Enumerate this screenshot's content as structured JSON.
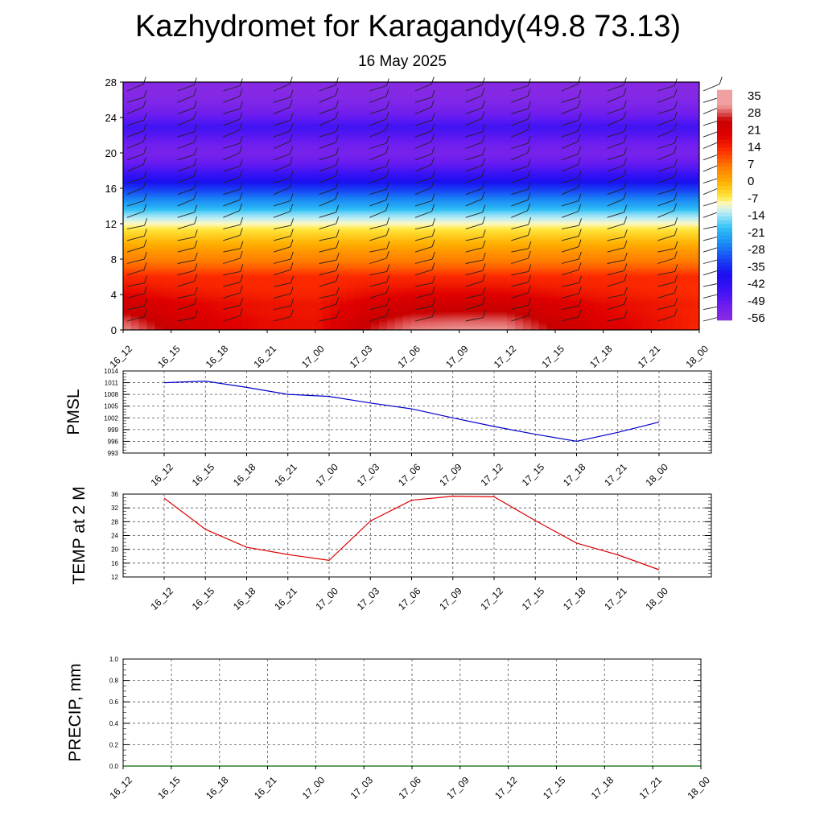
{
  "header": {
    "title": "Kazhydromet for Karagandy(49.8 73.13)",
    "subtitle": "16 May 2025"
  },
  "time_labels": [
    "16_12",
    "16_15",
    "16_18",
    "16_21",
    "17_00",
    "17_03",
    "17_06",
    "17_09",
    "17_12",
    "17_15",
    "17_18",
    "17_21",
    "18_00"
  ],
  "chart_data": [
    {
      "type": "heatmap",
      "name": "vertical-cross-section",
      "y_ticks": [
        0,
        4,
        8,
        12,
        16,
        20,
        24,
        28
      ],
      "ylim": [
        0,
        28
      ],
      "colorbar": {
        "labels": [
          "35",
          "28",
          "21",
          "14",
          "7",
          "0",
          "-7",
          "-14",
          "-21",
          "-28",
          "-35",
          "-42",
          "-49",
          "-56"
        ],
        "values": [
          35,
          28,
          21,
          14,
          7,
          0,
          -7,
          -14,
          -21,
          -28,
          -35,
          -42,
          -49,
          -56
        ]
      },
      "colors": {
        "stops": [
          {
            "t": -63,
            "c": "#8a2be2"
          },
          {
            "t": -56,
            "c": "#6a1cf0"
          },
          {
            "t": -49,
            "c": "#3a12f5"
          },
          {
            "t": -42,
            "c": "#1a10f0"
          },
          {
            "t": -35,
            "c": "#1848f5"
          },
          {
            "t": -28,
            "c": "#1a8cf5"
          },
          {
            "t": -21,
            "c": "#30c0f5"
          },
          {
            "t": -14,
            "c": "#b8ecf7"
          },
          {
            "t": -10,
            "c": "#fff8c0"
          },
          {
            "t": -7,
            "c": "#ffe840"
          },
          {
            "t": 0,
            "c": "#ffb000"
          },
          {
            "t": 7,
            "c": "#ff7a00"
          },
          {
            "t": 14,
            "c": "#ff3000"
          },
          {
            "t": 21,
            "c": "#e00000"
          },
          {
            "t": 28,
            "c": "#c80000"
          },
          {
            "t": 32,
            "c": "#e06060"
          },
          {
            "t": 35,
            "c": "#f0a0a0"
          }
        ],
        "level_temps": [
          [
            0,
            31
          ],
          [
            1,
            29
          ],
          [
            2,
            26
          ],
          [
            3,
            24
          ],
          [
            4,
            20
          ],
          [
            5,
            17
          ],
          [
            6,
            15
          ],
          [
            7,
            10
          ],
          [
            8,
            6
          ],
          [
            9,
            3
          ],
          [
            10,
            -1
          ],
          [
            11,
            -5
          ],
          [
            12,
            -10
          ],
          [
            13,
            -16
          ],
          [
            14,
            -24
          ],
          [
            15,
            -30
          ],
          [
            16,
            -37
          ],
          [
            17,
            -44
          ],
          [
            18,
            -51
          ],
          [
            19,
            -56
          ],
          [
            20,
            -59
          ],
          [
            21,
            -57
          ],
          [
            22,
            -53
          ],
          [
            23,
            -50
          ],
          [
            24,
            -55
          ],
          [
            25,
            -59
          ],
          [
            26,
            -61
          ],
          [
            27,
            -62
          ],
          [
            28,
            -62
          ]
        ]
      },
      "surface_temps": [
        34,
        26,
        21,
        18,
        17,
        28,
        34,
        35,
        35,
        28,
        22,
        18,
        14
      ]
    },
    {
      "type": "line",
      "name": "pmsl",
      "ylabel": "PMSL",
      "y_ticks": [
        993,
        996,
        999,
        1002,
        1005,
        1008,
        1011,
        1014
      ],
      "ylim": [
        993,
        1014
      ],
      "series": [
        {
          "values": [
            1011,
            1011.4,
            1009.8,
            1008,
            1007.5,
            1005.8,
            1004.3,
            1002,
            999.8,
            997.8,
            996,
            998.3,
            1000.9
          ],
          "color": "#0000cc"
        }
      ]
    },
    {
      "type": "line",
      "name": "temp2m",
      "ylabel": "TEMP at 2 M",
      "y_ticks": [
        12,
        16,
        20,
        24,
        28,
        32,
        36
      ],
      "ylim": [
        12,
        36
      ],
      "series": [
        {
          "values": [
            34.8,
            25.8,
            20.6,
            18.5,
            16.8,
            28.2,
            34.2,
            35.4,
            35.2,
            28.3,
            21.8,
            18.4,
            14.1
          ],
          "color": "#dd0000"
        }
      ]
    },
    {
      "type": "line",
      "name": "precip",
      "ylabel": "PRECIP, mm",
      "y_ticks": [
        "0.0",
        "0.2",
        "0.4",
        "0.6",
        "0.8",
        "1.0"
      ],
      "ylim": [
        0,
        1
      ],
      "series": [
        {
          "values": [
            0,
            0,
            0,
            0,
            0,
            0,
            0,
            0,
            0,
            0,
            0,
            0,
            0
          ],
          "color": "#006400"
        }
      ]
    }
  ]
}
